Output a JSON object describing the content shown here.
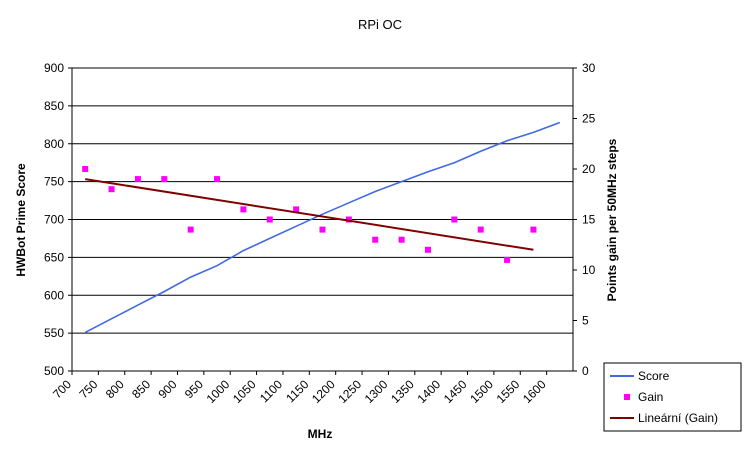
{
  "chart_data": {
    "type": "line",
    "title": "RPi OC",
    "xlabel": "MHz",
    "ylabel": "HWBot Prime Score",
    "y2label": "Points gain per 50MHz steps",
    "x_ticks": [
      "700",
      "750",
      "800",
      "850",
      "900",
      "950",
      "1000",
      "1050",
      "1100",
      "1150",
      "1200",
      "1250",
      "1300",
      "1350",
      "1400",
      "1450",
      "1500",
      "1550",
      "1600"
    ],
    "xlim": [
      700,
      1650
    ],
    "ylim": [
      500,
      900
    ],
    "y_ticks": [
      "500",
      "550",
      "600",
      "650",
      "700",
      "750",
      "800",
      "850",
      "900"
    ],
    "y2lim": [
      0,
      30
    ],
    "y2_ticks": [
      "0",
      "5",
      "10",
      "15",
      "20",
      "25",
      "30"
    ],
    "grid": true,
    "legend_position": "bottom-right",
    "series": [
      {
        "name": "Score",
        "axis": "left",
        "style": "line",
        "color": "#4169E1",
        "points": [
          [
            725,
            551
          ],
          [
            775,
            569
          ],
          [
            825,
            587
          ],
          [
            875,
            605
          ],
          [
            925,
            624
          ],
          [
            975,
            639
          ],
          [
            1025,
            659
          ],
          [
            1075,
            675
          ],
          [
            1125,
            691
          ],
          [
            1175,
            707
          ],
          [
            1225,
            722
          ],
          [
            1275,
            737
          ],
          [
            1325,
            750
          ],
          [
            1375,
            763
          ],
          [
            1425,
            775
          ],
          [
            1475,
            790
          ],
          [
            1525,
            804
          ],
          [
            1575,
            815
          ],
          [
            1625,
            828
          ]
        ]
      },
      {
        "name": "Gain",
        "axis": "right",
        "style": "markers",
        "color": "#FF00FF",
        "points": [
          [
            725,
            20
          ],
          [
            775,
            18
          ],
          [
            825,
            19
          ],
          [
            875,
            19
          ],
          [
            925,
            14
          ],
          [
            975,
            19
          ],
          [
            1025,
            16
          ],
          [
            1075,
            15
          ],
          [
            1125,
            16
          ],
          [
            1175,
            14
          ],
          [
            1225,
            15
          ],
          [
            1275,
            13
          ],
          [
            1325,
            13
          ],
          [
            1375,
            12
          ],
          [
            1425,
            15
          ],
          [
            1475,
            14
          ],
          [
            1525,
            11
          ],
          [
            1575,
            14
          ]
        ]
      },
      {
        "name": "Lineární (Gain)",
        "axis": "right",
        "style": "trendline",
        "color": "#800000",
        "points": [
          [
            725,
            19.0
          ],
          [
            1575,
            12.0
          ]
        ]
      }
    ]
  }
}
